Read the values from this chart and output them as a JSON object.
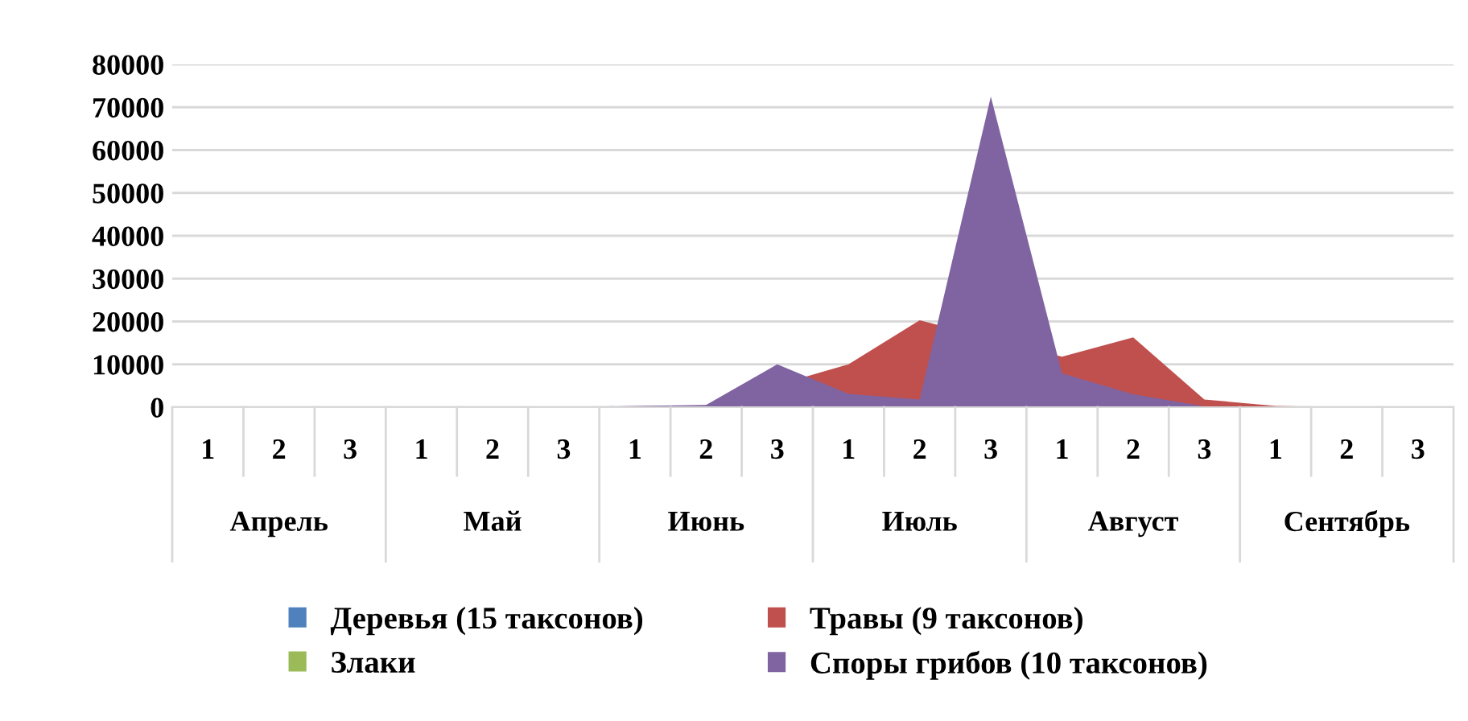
{
  "chart_data": {
    "type": "area",
    "categories": [
      "1",
      "2",
      "3",
      "1",
      "2",
      "3",
      "1",
      "2",
      "3",
      "1",
      "2",
      "3",
      "1",
      "2",
      "3",
      "1",
      "2",
      "3"
    ],
    "annotations": [
      "Апрель",
      "Май",
      "Июнь",
      "Июль",
      "Август",
      "Сентябрь"
    ],
    "series": [
      {
        "name": "Деревья (15 таксонов)",
        "color": "#4f81bd",
        "values": [
          null,
          null,
          null,
          null,
          null,
          null,
          null,
          null,
          null,
          null,
          null,
          null,
          null,
          null,
          null,
          null,
          null,
          null
        ]
      },
      {
        "name": "Травы (9 таксонов)",
        "color": "#c0504d",
        "values": [
          0,
          0,
          0,
          0,
          0,
          0,
          200,
          400,
          null,
          10000,
          20300,
          null,
          11800,
          16300,
          1800,
          300,
          0,
          0
        ]
      },
      {
        "name": "Злаки",
        "color": "#9bbb59",
        "values": [
          null,
          null,
          null,
          null,
          null,
          null,
          null,
          null,
          null,
          null,
          null,
          null,
          null,
          null,
          null,
          null,
          null,
          null
        ]
      },
      {
        "name": "Споры грибов (10 таксонов)",
        "color": "#8064a2",
        "values": [
          0,
          0,
          0,
          0,
          0,
          0,
          300,
          500,
          10000,
          3100,
          1800,
          72500,
          7900,
          3000,
          200,
          0,
          0,
          0
        ]
      }
    ],
    "ylim": [
      0,
      80000
    ],
    "yticks": [
      0,
      10000,
      20000,
      30000,
      40000,
      50000,
      60000,
      70000,
      80000
    ],
    "grid": "y",
    "legend": "bottom"
  }
}
